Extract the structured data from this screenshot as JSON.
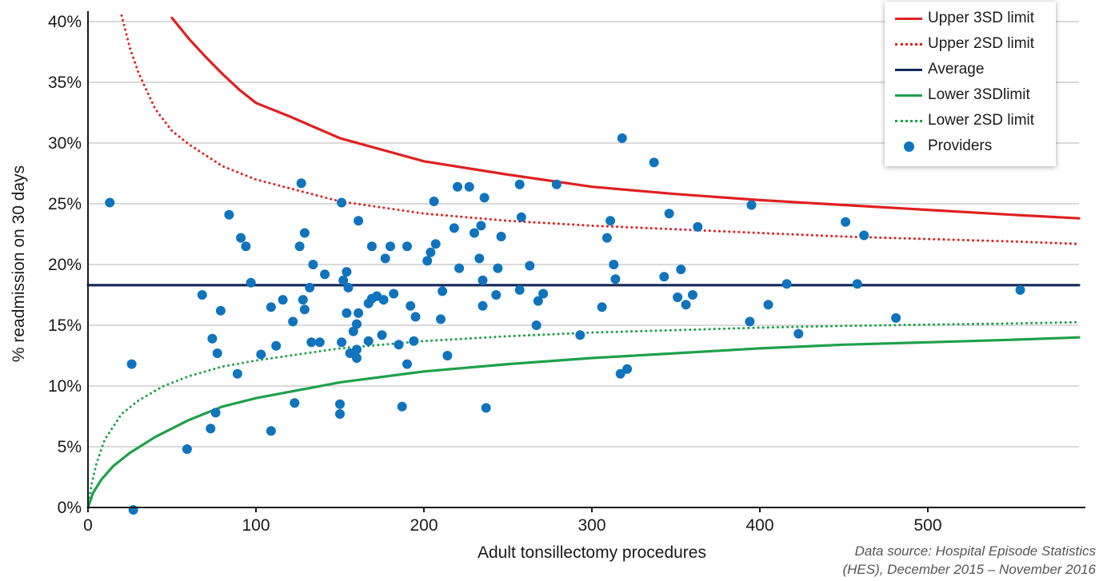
{
  "chart_data": {
    "type": "scatter",
    "title": "",
    "xlabel": "Adult tonsillectomy procedures",
    "ylabel": "% readmission on 30 days",
    "xlim": [
      0,
      590
    ],
    "ylim": [
      0,
      41
    ],
    "x_ticks": [
      "0",
      "100",
      "200",
      "300",
      "400",
      "500"
    ],
    "y_ticks": [
      "0%",
      "5%",
      "10%",
      "15%",
      "20%",
      "25%",
      "30%",
      "35%",
      "40%"
    ],
    "grid": "horizontal",
    "legend_position": "top-right",
    "average": 18.3,
    "series": [
      {
        "name": "Upper 3SD limit",
        "kind": "line",
        "style": "solid",
        "color": "#e02020",
        "points": [
          [
            50,
            40.3
          ],
          [
            60,
            38.6
          ],
          [
            70,
            37.1
          ],
          [
            80,
            35.7
          ],
          [
            90,
            34.4
          ],
          [
            100,
            33.3
          ],
          [
            120,
            32.2
          ],
          [
            150,
            30.4
          ],
          [
            200,
            28.5
          ],
          [
            250,
            27.4
          ],
          [
            300,
            26.4
          ],
          [
            350,
            25.8
          ],
          [
            400,
            25.3
          ],
          [
            450,
            24.9
          ],
          [
            500,
            24.5
          ],
          [
            550,
            24.1
          ],
          [
            590,
            23.8
          ]
        ]
      },
      {
        "name": "Upper 2SD limit",
        "kind": "line",
        "style": "dotted",
        "color": "#e02020",
        "points": [
          [
            20,
            40.5
          ],
          [
            25,
            37.8
          ],
          [
            30,
            35.8
          ],
          [
            40,
            32.8
          ],
          [
            50,
            31.0
          ],
          [
            60,
            29.9
          ],
          [
            80,
            28.1
          ],
          [
            100,
            27.0
          ],
          [
            150,
            25.2
          ],
          [
            200,
            24.2
          ],
          [
            250,
            23.6
          ],
          [
            300,
            23.2
          ],
          [
            350,
            22.9
          ],
          [
            400,
            22.6
          ],
          [
            450,
            22.3
          ],
          [
            500,
            22.1
          ],
          [
            550,
            21.9
          ],
          [
            590,
            21.7
          ]
        ]
      },
      {
        "name": "Average",
        "kind": "line",
        "style": "solid",
        "color": "#14285a",
        "points": [
          [
            0,
            18.3
          ],
          [
            590,
            18.3
          ]
        ]
      },
      {
        "name": "Lower 3SDlimit",
        "kind": "line",
        "style": "solid",
        "color": "#1fa04a",
        "points": [
          [
            0,
            0
          ],
          [
            3,
            1.2
          ],
          [
            8,
            2.3
          ],
          [
            15,
            3.4
          ],
          [
            25,
            4.5
          ],
          [
            40,
            5.8
          ],
          [
            60,
            7.2
          ],
          [
            80,
            8.3
          ],
          [
            100,
            9.0
          ],
          [
            150,
            10.3
          ],
          [
            200,
            11.2
          ],
          [
            250,
            11.8
          ],
          [
            300,
            12.3
          ],
          [
            350,
            12.7
          ],
          [
            400,
            13.1
          ],
          [
            450,
            13.4
          ],
          [
            500,
            13.6
          ],
          [
            550,
            13.8
          ],
          [
            590,
            14.0
          ]
        ]
      },
      {
        "name": "Lower 2SD limit",
        "kind": "line",
        "style": "dotted",
        "color": "#1fa04a",
        "points": [
          [
            0,
            0
          ],
          [
            2,
            1.8
          ],
          [
            5,
            3.6
          ],
          [
            10,
            5.6
          ],
          [
            20,
            7.7
          ],
          [
            30,
            8.8
          ],
          [
            45,
            10.0
          ],
          [
            60,
            10.8
          ],
          [
            80,
            11.6
          ],
          [
            100,
            12.1
          ],
          [
            150,
            13.1
          ],
          [
            200,
            13.7
          ],
          [
            250,
            14.1
          ],
          [
            300,
            14.4
          ],
          [
            350,
            14.6
          ],
          [
            400,
            14.8
          ],
          [
            450,
            14.95
          ],
          [
            500,
            15.05
          ],
          [
            550,
            15.15
          ],
          [
            590,
            15.25
          ]
        ]
      },
      {
        "name": "Providers",
        "kind": "scatter",
        "color": "#0f74bd",
        "points": [
          [
            13,
            25.1
          ],
          [
            26,
            11.8
          ],
          [
            27,
            -0.2
          ],
          [
            59,
            4.8
          ],
          [
            68,
            17.5
          ],
          [
            73,
            6.5
          ],
          [
            74,
            13.9
          ],
          [
            76,
            7.8
          ],
          [
            77,
            12.7
          ],
          [
            79,
            16.2
          ],
          [
            84,
            24.1
          ],
          [
            89,
            11.0
          ],
          [
            91,
            22.2
          ],
          [
            94,
            21.5
          ],
          [
            97,
            18.5
          ],
          [
            103,
            12.6
          ],
          [
            109,
            16.5
          ],
          [
            109,
            6.3
          ],
          [
            112,
            13.3
          ],
          [
            116,
            17.1
          ],
          [
            122,
            15.3
          ],
          [
            123,
            8.6
          ],
          [
            126,
            21.5
          ],
          [
            127,
            26.7
          ],
          [
            128,
            17.1
          ],
          [
            129,
            22.6
          ],
          [
            129,
            16.3
          ],
          [
            132,
            18.1
          ],
          [
            133,
            13.6
          ],
          [
            134,
            20.0
          ],
          [
            138,
            13.6
          ],
          [
            141,
            19.2
          ],
          [
            150,
            8.5
          ],
          [
            150,
            7.7
          ],
          [
            151,
            13.6
          ],
          [
            151,
            25.1
          ],
          [
            152,
            18.7
          ],
          [
            154,
            19.4
          ],
          [
            154,
            16.0
          ],
          [
            155,
            18.1
          ],
          [
            156,
            12.7
          ],
          [
            158,
            14.5
          ],
          [
            160,
            15.1
          ],
          [
            160,
            13.0
          ],
          [
            160,
            12.3
          ],
          [
            161,
            16.0
          ],
          [
            161,
            23.6
          ],
          [
            167,
            13.7
          ],
          [
            167,
            16.8
          ],
          [
            169,
            17.2
          ],
          [
            169,
            21.5
          ],
          [
            172,
            17.4
          ],
          [
            175,
            14.2
          ],
          [
            176,
            17.1
          ],
          [
            177,
            20.5
          ],
          [
            180,
            21.5
          ],
          [
            182,
            17.6
          ],
          [
            185,
            13.4
          ],
          [
            187,
            8.3
          ],
          [
            190,
            21.5
          ],
          [
            190,
            11.8
          ],
          [
            192,
            16.6
          ],
          [
            194,
            13.7
          ],
          [
            195,
            15.7
          ],
          [
            202,
            20.3
          ],
          [
            204,
            21.0
          ],
          [
            206,
            25.2
          ],
          [
            207,
            21.7
          ],
          [
            210,
            15.5
          ],
          [
            211,
            17.8
          ],
          [
            214,
            12.5
          ],
          [
            218,
            23.0
          ],
          [
            220,
            26.4
          ],
          [
            221,
            19.7
          ],
          [
            227,
            26.4
          ],
          [
            230,
            22.6
          ],
          [
            233,
            20.5
          ],
          [
            234,
            23.2
          ],
          [
            235,
            16.6
          ],
          [
            235,
            18.7
          ],
          [
            236,
            25.5
          ],
          [
            237,
            8.2
          ],
          [
            243,
            17.5
          ],
          [
            244,
            19.7
          ],
          [
            246,
            22.3
          ],
          [
            257,
            26.6
          ],
          [
            257,
            17.9
          ],
          [
            258,
            23.9
          ],
          [
            263,
            19.9
          ],
          [
            267,
            15.0
          ],
          [
            268,
            17.0
          ],
          [
            271,
            17.6
          ],
          [
            279,
            26.6
          ],
          [
            293,
            14.2
          ],
          [
            306,
            16.5
          ],
          [
            309,
            22.2
          ],
          [
            311,
            23.6
          ],
          [
            313,
            20.0
          ],
          [
            314,
            18.8
          ],
          [
            317,
            11.0
          ],
          [
            318,
            30.4
          ],
          [
            321,
            11.4
          ],
          [
            337,
            28.4
          ],
          [
            343,
            19.0
          ],
          [
            346,
            24.2
          ],
          [
            351,
            17.3
          ],
          [
            353,
            19.6
          ],
          [
            356,
            16.7
          ],
          [
            360,
            17.5
          ],
          [
            363,
            23.1
          ],
          [
            394,
            15.3
          ],
          [
            395,
            24.9
          ],
          [
            405,
            16.7
          ],
          [
            416,
            18.4
          ],
          [
            423,
            14.3
          ],
          [
            451,
            23.5
          ],
          [
            458,
            18.4
          ],
          [
            462,
            22.4
          ],
          [
            481,
            15.6
          ],
          [
            555,
            17.9
          ]
        ]
      }
    ]
  },
  "source_line1": "Data source: Hospital Episode Statistics",
  "source_line2": "(HES), December 2015 – November 2016"
}
